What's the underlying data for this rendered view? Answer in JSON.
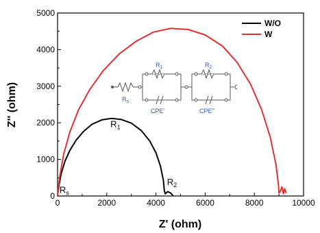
{
  "chart_data": {
    "type": "line",
    "xlabel": "Z' (ohm)",
    "ylabel": "Z'' (ohm)",
    "xlim": [
      0,
      10000
    ],
    "ylim": [
      0,
      5000
    ],
    "x_ticks": [
      "0",
      "2000",
      "4000",
      "6000",
      "8000",
      "10000"
    ],
    "y_ticks": [
      "0",
      "1000",
      "2000",
      "3000",
      "4000",
      "5000"
    ],
    "legend_position": "top-right",
    "series": [
      {
        "name": "W/O",
        "color": "#000000",
        "points": [
          [
            0,
            0
          ],
          [
            60,
            300
          ],
          [
            150,
            620
          ],
          [
            300,
            950
          ],
          [
            500,
            1250
          ],
          [
            750,
            1520
          ],
          [
            1050,
            1760
          ],
          [
            1400,
            1960
          ],
          [
            1800,
            2080
          ],
          [
            2200,
            2120
          ],
          [
            2600,
            2090
          ],
          [
            3000,
            1990
          ],
          [
            3400,
            1790
          ],
          [
            3750,
            1500
          ],
          [
            4000,
            1180
          ],
          [
            4180,
            820
          ],
          [
            4300,
            430
          ],
          [
            4340,
            150
          ],
          [
            4380,
            60
          ],
          [
            4480,
            120
          ],
          [
            4600,
            80
          ],
          [
            4680,
            20
          ]
        ]
      },
      {
        "name": "W",
        "color": "#e03030",
        "points": [
          [
            0,
            0
          ],
          [
            80,
            500
          ],
          [
            250,
            1150
          ],
          [
            500,
            1750
          ],
          [
            850,
            2350
          ],
          [
            1300,
            2900
          ],
          [
            1850,
            3420
          ],
          [
            2500,
            3880
          ],
          [
            3200,
            4230
          ],
          [
            3900,
            4480
          ],
          [
            4600,
            4580
          ],
          [
            5300,
            4550
          ],
          [
            6000,
            4400
          ],
          [
            6700,
            4100
          ],
          [
            7300,
            3650
          ],
          [
            7850,
            3050
          ],
          [
            8300,
            2350
          ],
          [
            8650,
            1600
          ],
          [
            8880,
            850
          ],
          [
            8980,
            300
          ],
          [
            9000,
            80
          ],
          [
            9050,
            120
          ],
          [
            9120,
            250
          ],
          [
            9180,
            60
          ],
          [
            9230,
            200
          ],
          [
            9290,
            90
          ]
        ]
      }
    ],
    "annotations": [
      {
        "text": "R",
        "sub": "1",
        "x": 2150,
        "y": 1880
      },
      {
        "text": "R",
        "sub": "2",
        "x": 4450,
        "y": 300
      },
      {
        "text": "R",
        "sub": "s",
        "x": 80,
        "y": 80
      }
    ],
    "inset_circuit": {
      "labels": [
        "R",
        "s",
        "R",
        "1",
        "R",
        "2",
        "CPE'",
        "CPE''"
      ]
    }
  }
}
